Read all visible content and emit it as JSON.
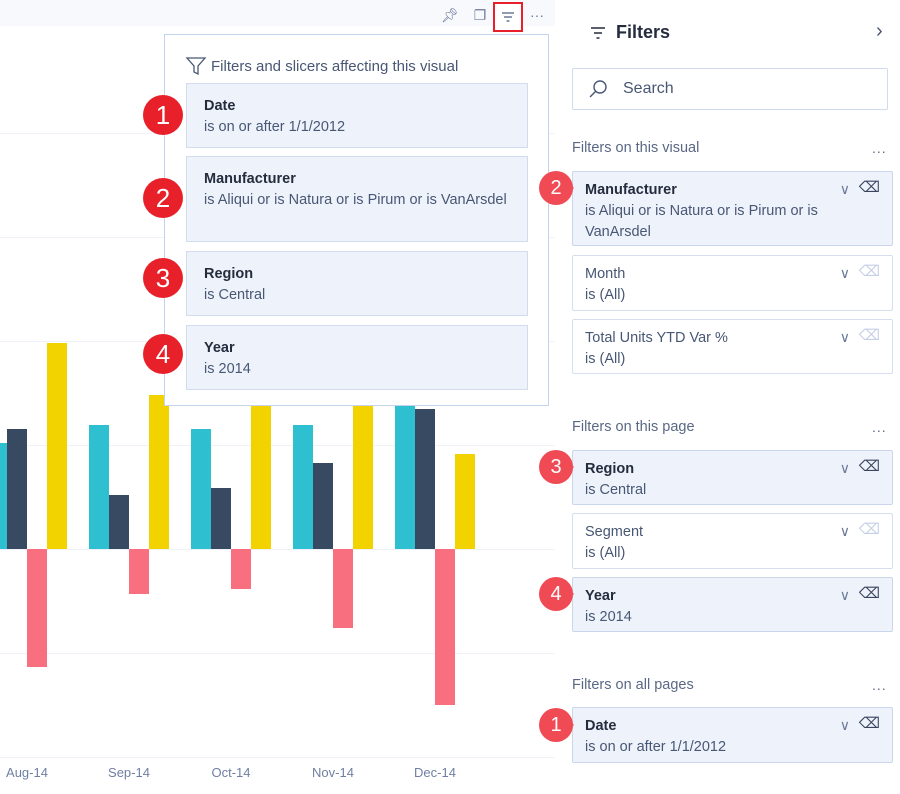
{
  "toolbar": {
    "icons": [
      "pin-icon",
      "copy-icon",
      "filter-icon",
      "more-options-icon"
    ],
    "more_label": "···"
  },
  "popup": {
    "title": "Filters and slicers affecting this visual",
    "items": [
      {
        "badge": "1",
        "name": "Date",
        "value": "is on or after 1/1/2012"
      },
      {
        "badge": "2",
        "name": "Manufacturer",
        "value": "is Aliqui or is Natura or is Pirum or is VanArsdel"
      },
      {
        "badge": "3",
        "name": "Region",
        "value": "is Central"
      },
      {
        "badge": "4",
        "name": "Year",
        "value": "is 2014"
      }
    ]
  },
  "panel": {
    "title": "Filters",
    "search_placeholder": "Search",
    "sections": [
      {
        "label": "Filters on this visual",
        "more": "...",
        "items": [
          {
            "badge": "2",
            "name": "Manufacturer",
            "value": "is Aliqui or is Natura or is Pirum or is VanArsdel",
            "active": true
          },
          {
            "name": "Month",
            "value": "is (All)",
            "active": false
          },
          {
            "name": "Total Units YTD Var %",
            "value": "is (All)",
            "active": false
          }
        ]
      },
      {
        "label": "Filters on this page",
        "more": "...",
        "items": [
          {
            "badge": "3",
            "name": "Region",
            "value": "is Central",
            "active": true
          },
          {
            "name": "Segment",
            "value": "is (All)",
            "active": false
          },
          {
            "badge": "4",
            "name": "Year",
            "value": "is 2014",
            "active": true
          }
        ]
      },
      {
        "label": "Filters on all pages",
        "more": "...",
        "items": [
          {
            "badge": "1",
            "name": "Date",
            "value": "is on or after 1/1/2012",
            "active": true
          }
        ]
      }
    ]
  },
  "colors": {
    "teal": "#2ec0d0",
    "navy": "#374a62",
    "red": "#f87080",
    "yellow": "#f2d300",
    "badge": "#e8202a"
  },
  "chart_data": {
    "type": "bar",
    "categories": [
      "Aug-14",
      "Sep-14",
      "Oct-14",
      "Nov-14",
      "Dec-14"
    ],
    "series": [
      {
        "name": "series-teal",
        "values": [
          1.02,
          1.19,
          1.15,
          1.19,
          1.6
        ]
      },
      {
        "name": "series-navy",
        "values": [
          1.15,
          0.52,
          0.59,
          0.83,
          1.35
        ]
      },
      {
        "name": "series-red",
        "values": [
          -1.13,
          -0.43,
          -0.38,
          -0.76,
          -1.5
        ]
      },
      {
        "name": "series-yellow",
        "values": [
          1.98,
          1.48,
          2.0,
          1.9,
          0.91
        ]
      }
    ],
    "ylim": [
      -2,
      4
    ],
    "grid": true
  }
}
